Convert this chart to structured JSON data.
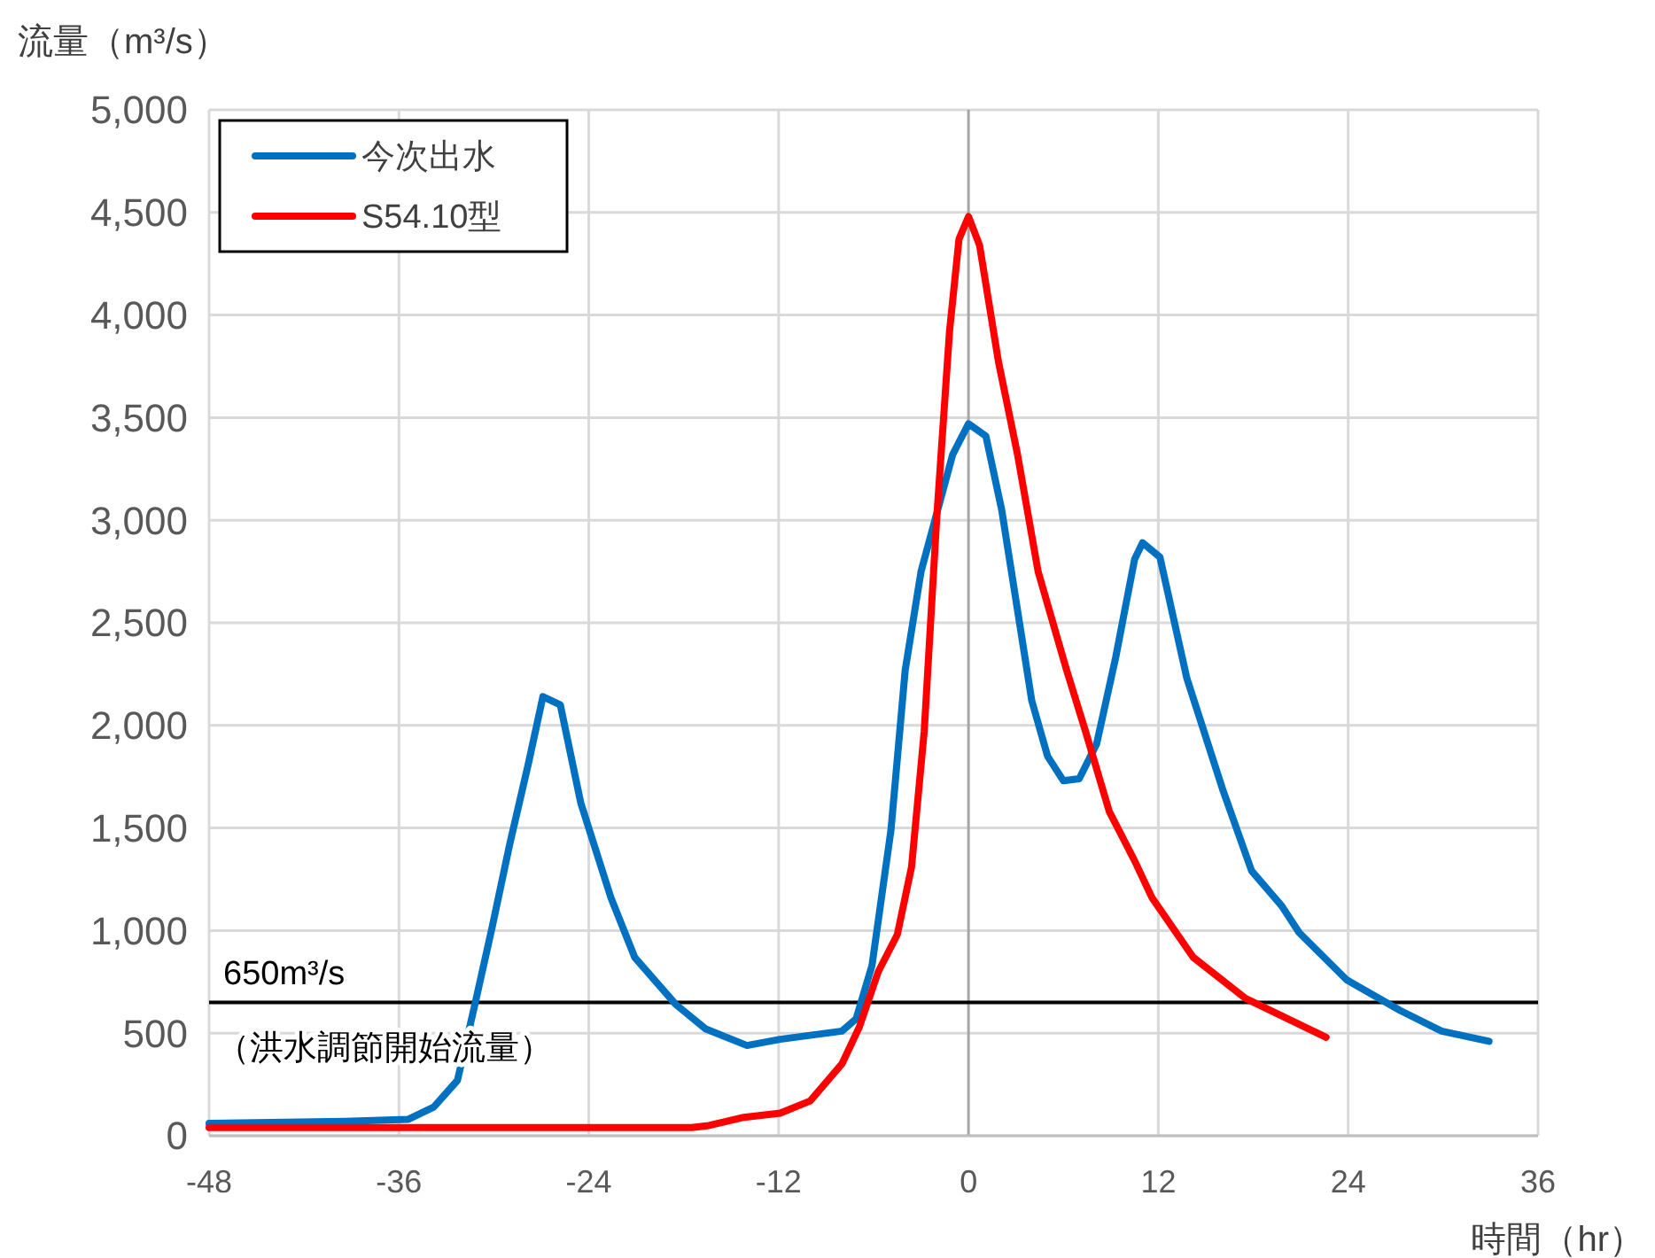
{
  "chart_data": {
    "type": "line",
    "ylabel": "流量（m³/s）",
    "xlabel": "時間（hr）",
    "xlim": [
      -48,
      36
    ],
    "xticks": [
      -48,
      -36,
      -24,
      -12,
      0,
      12,
      24,
      36
    ],
    "ylim": [
      0,
      5000
    ],
    "yticks": [
      0,
      500,
      {
        "value": 1000,
        "label": "1,000"
      },
      {
        "value": 1500,
        "label": "1,500"
      },
      {
        "value": 2000,
        "label": "2,000"
      },
      {
        "value": 2500,
        "label": "2,500"
      },
      {
        "value": 3000,
        "label": "3,000"
      },
      {
        "value": 3500,
        "label": "3,500"
      },
      {
        "value": 4000,
        "label": "4,000"
      },
      {
        "value": 4500,
        "label": "4,500"
      },
      {
        "value": 5000,
        "label": "5,000"
      }
    ],
    "grid": true,
    "legend": "top left",
    "marker": "none",
    "line_style": "solid",
    "series": [
      {
        "name": "今次出水",
        "color": "#0070c0",
        "x": [
          -48,
          -39.4,
          -35.4,
          -33.8,
          -32.3,
          -31.2,
          -30.1,
          -29,
          -27.8,
          -26.9,
          -25.8,
          -24.5,
          -22.6,
          -21.1,
          -18.5,
          -16.6,
          -14,
          -11.9,
          -8,
          -7.1,
          -6.1,
          -4.9,
          -4,
          -3,
          -1,
          0,
          1.1,
          2.1,
          4,
          5,
          6,
          7,
          8.1,
          9.3,
          10.5,
          11,
          12.1,
          13.8,
          16.1,
          17.9,
          19.8,
          20.9,
          23.9,
          27.3,
          29.9,
          32.9
        ],
        "values": [
          60,
          70,
          80,
          140,
          270,
          640,
          1020,
          1420,
          1820,
          2140,
          2100,
          1620,
          1160,
          870,
          640,
          520,
          440,
          470,
          510,
          570,
          830,
          1490,
          2270,
          2750,
          3320,
          3470,
          3410,
          3050,
          2120,
          1850,
          1730,
          1740,
          1910,
          2330,
          2810,
          2890,
          2820,
          2230,
          1680,
          1290,
          1120,
          990,
          760,
          610,
          510,
          460
        ]
      },
      {
        "name": "S54.10型",
        "color": "#ff0000",
        "x": [
          -48,
          -30,
          -17.5,
          -16.4,
          -14.2,
          -11.9,
          -10,
          -8,
          -6.9,
          -5.7,
          -4.5,
          -3.6,
          -2.8,
          -2,
          -1.2,
          -0.6,
          0,
          0.7,
          1.9,
          3.1,
          4.4,
          6.2,
          7.4,
          8.9,
          10.5,
          11.6,
          14.2,
          17.5,
          22.6
        ],
        "values": [
          40,
          40,
          40,
          50,
          90,
          110,
          170,
          350,
          530,
          800,
          980,
          1310,
          1970,
          3020,
          3920,
          4370,
          4480,
          4340,
          3770,
          3320,
          2750,
          2270,
          1970,
          1580,
          1340,
          1160,
          870,
          670,
          480
        ]
      }
    ],
    "ref_lines": [
      {
        "axis": "y",
        "value": 650,
        "label": "650m³/s",
        "color": "#000000"
      }
    ],
    "annotations": [
      "（洪水調節開始流量）"
    ]
  }
}
